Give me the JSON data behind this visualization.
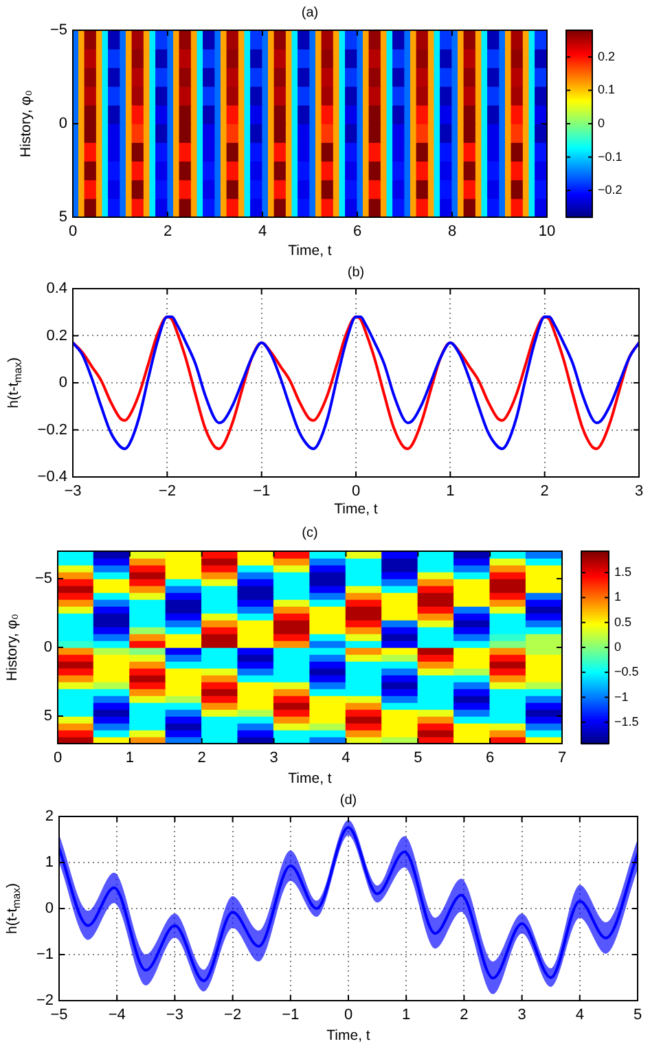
{
  "chart_data": [
    {
      "type": "heatmap",
      "title": "(a)",
      "xlabel": "Time, t",
      "ylabel": "History, φ₀",
      "xlim": [
        0,
        10
      ],
      "xticks": [
        0,
        2,
        4,
        6,
        8,
        10
      ],
      "ylim": [
        5,
        -5
      ],
      "yticks": [
        -5,
        0,
        5
      ],
      "clim": [
        -0.28,
        0.28
      ],
      "cticks": [
        -0.2,
        -0.1,
        0,
        0.1,
        0.2
      ],
      "cells": [
        [
          -0.15,
          0.12,
          0.27,
          0.27,
          0.12,
          -0.08,
          -0.25,
          -0.25,
          -0.15,
          0.12,
          0.26,
          0.26,
          0.12,
          -0.08,
          -0.18,
          -0.18,
          -0.15,
          0.12,
          0.27,
          0.27,
          0.12,
          -0.08,
          -0.25,
          -0.25,
          -0.15,
          0.12,
          0.26,
          0.26,
          0.12,
          -0.08,
          -0.18,
          -0.18,
          -0.15,
          0.12,
          0.27,
          0.27,
          0.12,
          -0.08,
          -0.25,
          -0.25,
          -0.15,
          0.12,
          0.26,
          0.26,
          0.12,
          -0.08,
          -0.18,
          -0.18,
          -0.15,
          0.12,
          0.27,
          0.27,
          0.12,
          -0.08,
          -0.25,
          -0.25,
          -0.15,
          0.12,
          0.26,
          0.26,
          0.12,
          -0.08,
          -0.18,
          -0.18,
          -0.15,
          0.12,
          0.27,
          0.27,
          0.12,
          -0.08,
          -0.25,
          -0.25,
          -0.15,
          0.12,
          0.26,
          0.26,
          0.12,
          -0.08,
          -0.18,
          -0.18
        ],
        [
          -0.15,
          0.12,
          0.25,
          0.25,
          0.12,
          -0.08,
          -0.18,
          -0.18,
          -0.15,
          0.12,
          0.27,
          0.27,
          0.12,
          -0.08,
          -0.25,
          -0.25,
          -0.15,
          0.12,
          0.25,
          0.25,
          0.12,
          -0.08,
          -0.18,
          -0.18,
          -0.15,
          0.12,
          0.27,
          0.27,
          0.12,
          -0.08,
          -0.25,
          -0.25,
          -0.15,
          0.12,
          0.25,
          0.25,
          0.12,
          -0.08,
          -0.18,
          -0.18,
          -0.15,
          0.12,
          0.27,
          0.27,
          0.12,
          -0.08,
          -0.25,
          -0.25,
          -0.15,
          0.12,
          0.25,
          0.25,
          0.12,
          -0.08,
          -0.18,
          -0.18,
          -0.15,
          0.12,
          0.27,
          0.27,
          0.12,
          -0.08,
          -0.25,
          -0.25,
          -0.15,
          0.12,
          0.25,
          0.25,
          0.12,
          -0.08,
          -0.18,
          -0.18,
          -0.15,
          0.12,
          0.27,
          0.27,
          0.12,
          -0.08,
          -0.25,
          -0.25
        ],
        [
          -0.15,
          0.12,
          0.27,
          0.27,
          0.12,
          -0.08,
          -0.25,
          -0.25,
          -0.15,
          0.12,
          0.25,
          0.25,
          0.12,
          -0.08,
          -0.18,
          -0.18,
          -0.15,
          0.12,
          0.27,
          0.27,
          0.12,
          -0.08,
          -0.25,
          -0.25,
          -0.15,
          0.12,
          0.25,
          0.25,
          0.12,
          -0.08,
          -0.18,
          -0.18,
          -0.15,
          0.12,
          0.27,
          0.27,
          0.12,
          -0.08,
          -0.25,
          -0.25,
          -0.15,
          0.12,
          0.25,
          0.25,
          0.12,
          -0.08,
          -0.18,
          -0.18,
          -0.15,
          0.12,
          0.27,
          0.27,
          0.12,
          -0.08,
          -0.25,
          -0.25,
          -0.15,
          0.12,
          0.25,
          0.25,
          0.12,
          -0.08,
          -0.18,
          -0.18,
          -0.15,
          0.12,
          0.27,
          0.27,
          0.12,
          -0.08,
          -0.25,
          -0.25,
          -0.15,
          0.12,
          0.25,
          0.25,
          0.12,
          -0.08,
          -0.18,
          -0.18
        ],
        [
          -0.15,
          0.12,
          0.25,
          0.25,
          0.12,
          -0.08,
          -0.18,
          -0.18,
          -0.15,
          0.12,
          0.26,
          0.26,
          0.12,
          -0.08,
          -0.25,
          -0.25,
          -0.15,
          0.12,
          0.25,
          0.25,
          0.12,
          -0.08,
          -0.18,
          -0.18,
          -0.15,
          0.12,
          0.26,
          0.26,
          0.12,
          -0.08,
          -0.25,
          -0.25,
          -0.15,
          0.12,
          0.25,
          0.25,
          0.12,
          -0.08,
          -0.18,
          -0.18,
          -0.15,
          0.12,
          0.26,
          0.26,
          0.12,
          -0.08,
          -0.25,
          -0.25,
          -0.15,
          0.12,
          0.25,
          0.25,
          0.12,
          -0.08,
          -0.18,
          -0.18,
          -0.15,
          0.12,
          0.26,
          0.26,
          0.12,
          -0.08,
          -0.25,
          -0.25,
          -0.15,
          0.12,
          0.25,
          0.25,
          0.12,
          -0.08,
          -0.18,
          -0.18,
          -0.15,
          0.12,
          0.26,
          0.26,
          0.12,
          -0.08,
          -0.25,
          -0.25
        ],
        [
          -0.15,
          0.12,
          0.28,
          0.28,
          0.12,
          -0.08,
          -0.25,
          -0.25,
          -0.15,
          0.12,
          0.2,
          0.2,
          0.12,
          -0.08,
          -0.22,
          -0.22,
          -0.15,
          0.12,
          0.28,
          0.28,
          0.12,
          -0.08,
          -0.25,
          -0.25,
          -0.15,
          0.12,
          0.2,
          0.2,
          0.12,
          -0.08,
          -0.22,
          -0.22,
          -0.15,
          0.12,
          0.28,
          0.28,
          0.12,
          -0.08,
          -0.25,
          -0.25,
          -0.15,
          0.12,
          0.2,
          0.2,
          0.12,
          -0.08,
          -0.22,
          -0.22,
          -0.15,
          0.12,
          0.28,
          0.28,
          0.12,
          -0.08,
          -0.25,
          -0.25,
          -0.15,
          0.12,
          0.2,
          0.2,
          0.12,
          -0.08,
          -0.22,
          -0.22,
          -0.15,
          0.12,
          0.28,
          0.28,
          0.12,
          -0.08,
          -0.25,
          -0.25,
          -0.15,
          0.12,
          0.2,
          0.2,
          0.12,
          -0.08,
          -0.22,
          -0.22
        ],
        [
          -0.15,
          0.12,
          0.28,
          0.28,
          0.12,
          -0.08,
          -0.22,
          -0.22,
          -0.15,
          0.12,
          0.18,
          0.18,
          0.12,
          -0.08,
          -0.25,
          -0.25,
          -0.15,
          0.12,
          0.28,
          0.28,
          0.12,
          -0.08,
          -0.22,
          -0.22,
          -0.15,
          0.12,
          0.18,
          0.18,
          0.12,
          -0.08,
          -0.25,
          -0.25,
          -0.15,
          0.12,
          0.28,
          0.28,
          0.12,
          -0.08,
          -0.22,
          -0.22,
          -0.15,
          0.12,
          0.18,
          0.18,
          0.12,
          -0.08,
          -0.25,
          -0.25,
          -0.15,
          0.12,
          0.28,
          0.28,
          0.12,
          -0.08,
          -0.22,
          -0.22,
          -0.15,
          0.12,
          0.18,
          0.18,
          0.12,
          -0.08,
          -0.25,
          -0.25,
          -0.15,
          0.12,
          0.28,
          0.28,
          0.12,
          -0.08,
          -0.22,
          -0.22,
          -0.15,
          0.12,
          0.18,
          0.18,
          0.12,
          -0.08,
          -0.25,
          -0.25
        ],
        [
          -0.15,
          0.12,
          0.2,
          0.2,
          0.12,
          -0.08,
          -0.22,
          -0.22,
          -0.15,
          0.12,
          0.28,
          0.28,
          0.12,
          -0.08,
          -0.2,
          -0.2,
          -0.15,
          0.12,
          0.2,
          0.2,
          0.12,
          -0.08,
          -0.22,
          -0.22,
          -0.15,
          0.12,
          0.28,
          0.28,
          0.12,
          -0.08,
          -0.2,
          -0.2,
          -0.15,
          0.12,
          0.2,
          0.2,
          0.12,
          -0.08,
          -0.22,
          -0.22,
          -0.15,
          0.12,
          0.28,
          0.28,
          0.12,
          -0.08,
          -0.2,
          -0.2,
          -0.15,
          0.12,
          0.2,
          0.2,
          0.12,
          -0.08,
          -0.22,
          -0.22,
          -0.15,
          0.12,
          0.28,
          0.28,
          0.12,
          -0.08,
          -0.2,
          -0.2,
          -0.15,
          0.12,
          0.2,
          0.2,
          0.12,
          -0.08,
          -0.22,
          -0.22,
          -0.15,
          0.12,
          0.28,
          0.28,
          0.12,
          -0.08,
          -0.2,
          -0.2
        ],
        [
          -0.15,
          0.12,
          0.28,
          0.28,
          0.12,
          -0.08,
          -0.2,
          -0.2,
          -0.15,
          0.12,
          0.2,
          0.2,
          0.12,
          -0.08,
          -0.22,
          -0.22,
          -0.15,
          0.12,
          0.28,
          0.28,
          0.12,
          -0.08,
          -0.2,
          -0.2,
          -0.15,
          0.12,
          0.2,
          0.2,
          0.12,
          -0.08,
          -0.22,
          -0.22,
          -0.15,
          0.12,
          0.28,
          0.28,
          0.12,
          -0.08,
          -0.2,
          -0.2,
          -0.15,
          0.12,
          0.2,
          0.2,
          0.12,
          -0.08,
          -0.22,
          -0.22,
          -0.15,
          0.12,
          0.28,
          0.28,
          0.12,
          -0.08,
          -0.2,
          -0.2,
          -0.15,
          0.12,
          0.2,
          0.2,
          0.12,
          -0.08,
          -0.22,
          -0.22,
          -0.15,
          0.12,
          0.28,
          0.28,
          0.12,
          -0.08,
          -0.2,
          -0.2,
          -0.15,
          0.12,
          0.2,
          0.2,
          0.12,
          -0.08,
          -0.22,
          -0.22
        ],
        [
          -0.15,
          0.12,
          0.2,
          0.2,
          0.12,
          -0.08,
          -0.22,
          -0.22,
          -0.15,
          0.12,
          0.28,
          0.28,
          0.12,
          -0.08,
          -0.2,
          -0.2,
          -0.15,
          0.12,
          0.2,
          0.2,
          0.12,
          -0.08,
          -0.22,
          -0.22,
          -0.15,
          0.12,
          0.28,
          0.28,
          0.12,
          -0.08,
          -0.2,
          -0.2,
          -0.15,
          0.12,
          0.2,
          0.2,
          0.12,
          -0.08,
          -0.22,
          -0.22,
          -0.15,
          0.12,
          0.28,
          0.28,
          0.12,
          -0.08,
          -0.2,
          -0.2,
          -0.15,
          0.12,
          0.2,
          0.2,
          0.12,
          -0.08,
          -0.22,
          -0.22,
          -0.15,
          0.12,
          0.28,
          0.28,
          0.12,
          -0.08,
          -0.2,
          -0.2,
          -0.15,
          0.12,
          0.2,
          0.2,
          0.12,
          -0.08,
          -0.22,
          -0.22,
          -0.15,
          0.12,
          0.28,
          0.28,
          0.12,
          -0.08,
          -0.2,
          -0.2
        ],
        [
          -0.15,
          0.12,
          0.28,
          0.28,
          0.12,
          -0.08,
          -0.2,
          -0.2,
          -0.15,
          0.12,
          0.2,
          0.2,
          0.12,
          -0.08,
          -0.22,
          -0.22,
          -0.15,
          0.12,
          0.28,
          0.28,
          0.12,
          -0.08,
          -0.2,
          -0.2,
          -0.15,
          0.12,
          0.2,
          0.2,
          0.12,
          -0.08,
          -0.22,
          -0.22,
          -0.15,
          0.12,
          0.28,
          0.28,
          0.12,
          -0.08,
          -0.2,
          -0.2,
          -0.15,
          0.12,
          0.2,
          0.2,
          0.12,
          -0.08,
          -0.22,
          -0.22,
          -0.15,
          0.12,
          0.28,
          0.28,
          0.12,
          -0.08,
          -0.2,
          -0.2,
          -0.15,
          0.12,
          0.2,
          0.2,
          0.12,
          -0.08,
          -0.22,
          -0.22,
          -0.15,
          0.12,
          0.28,
          0.28,
          0.12,
          -0.08,
          -0.2,
          -0.2,
          -0.15,
          0.12,
          0.2,
          0.2,
          0.12,
          -0.08,
          -0.22,
          -0.22
        ]
      ]
    },
    {
      "type": "line",
      "title": "(b)",
      "xlabel": "Time, t",
      "ylabel": "h(t-t$_{max}$)",
      "xlim": [
        -3,
        3
      ],
      "xticks": [
        -3,
        -2,
        -1,
        0,
        1,
        2,
        3
      ],
      "ylim": [
        -0.4,
        0.4
      ],
      "yticks": [
        -0.4,
        -0.2,
        0,
        0.2,
        0.4
      ],
      "grid": true,
      "x": [
        -3,
        -2.9,
        -2.8,
        -2.7,
        -2.6,
        -2.5,
        -2.45,
        -2.4,
        -2.3,
        -2.2,
        -2.1,
        -2,
        -1.95,
        -1.9,
        -1.8,
        -1.7,
        -1.6,
        -1.5,
        -1.45,
        -1.4,
        -1.3,
        -1.2,
        -1.1,
        -1,
        -0.9,
        -0.8,
        -0.7,
        -0.6,
        -0.5,
        -0.45,
        -0.4,
        -0.3,
        -0.2,
        -0.1,
        0,
        0.05,
        0.1,
        0.2,
        0.3,
        0.4,
        0.5,
        0.55,
        0.6,
        0.7,
        0.8,
        0.9,
        1,
        1.1,
        1.2,
        1.3,
        1.4,
        1.5,
        1.55,
        1.6,
        1.7,
        1.8,
        1.9,
        2,
        2.05,
        2.1,
        2.2,
        2.3,
        2.4,
        2.5,
        2.55,
        2.6,
        2.7,
        2.8,
        2.9,
        3
      ],
      "series": [
        {
          "color": "#ff0000",
          "values": [
            0.17,
            0.13,
            0.07,
            0.01,
            -0.08,
            -0.15,
            -0.16,
            -0.14,
            -0.05,
            0.08,
            0.21,
            0.28,
            0.27,
            0.22,
            0.1,
            -0.05,
            -0.19,
            -0.27,
            -0.28,
            -0.26,
            -0.16,
            -0.02,
            0.11,
            0.17,
            0.13,
            0.07,
            0.01,
            -0.08,
            -0.15,
            -0.16,
            -0.14,
            -0.05,
            0.08,
            0.21,
            0.28,
            0.27,
            0.22,
            0.1,
            -0.05,
            -0.19,
            -0.27,
            -0.28,
            -0.26,
            -0.16,
            -0.02,
            0.11,
            0.17,
            0.13,
            0.07,
            0.01,
            -0.08,
            -0.15,
            -0.16,
            -0.14,
            -0.05,
            0.08,
            0.21,
            0.28,
            0.27,
            0.22,
            0.1,
            -0.05,
            -0.19,
            -0.27,
            -0.28,
            -0.26,
            -0.16,
            -0.02,
            0.11,
            0.17
          ]
        },
        {
          "color": "#0000ff",
          "values": [
            0.17,
            0.12,
            0.02,
            -0.1,
            -0.21,
            -0.27,
            -0.28,
            -0.26,
            -0.15,
            0.02,
            0.18,
            0.28,
            0.28,
            0.25,
            0.17,
            0.08,
            -0.05,
            -0.15,
            -0.17,
            -0.16,
            -0.09,
            0.01,
            0.11,
            0.17,
            0.12,
            0.02,
            -0.1,
            -0.21,
            -0.27,
            -0.28,
            -0.26,
            -0.15,
            0.02,
            0.18,
            0.28,
            0.28,
            0.25,
            0.17,
            0.08,
            -0.05,
            -0.15,
            -0.17,
            -0.16,
            -0.09,
            0.01,
            0.11,
            0.17,
            0.12,
            0.02,
            -0.1,
            -0.21,
            -0.27,
            -0.28,
            -0.26,
            -0.15,
            0.02,
            0.18,
            0.28,
            0.28,
            0.25,
            0.17,
            0.08,
            -0.05,
            -0.15,
            -0.17,
            -0.16,
            -0.09,
            0.01,
            0.11,
            0.17
          ]
        }
      ]
    },
    {
      "type": "heatmap",
      "title": "(c)",
      "xlabel": "Time, t",
      "ylabel": "History, φ₀",
      "xlim": [
        0,
        7
      ],
      "xticks": [
        0,
        1,
        2,
        3,
        4,
        5,
        6,
        7
      ],
      "ylim": [
        7,
        -7
      ],
      "yticks": [
        -5,
        0,
        5
      ],
      "clim": [
        -1.93,
        1.93
      ],
      "cticks": [
        -1.5,
        -1,
        -0.5,
        0,
        0.5,
        1,
        1.5
      ],
      "cells": [
        [
          -0.5,
          -1.75,
          0.4,
          0.5,
          1.4,
          0.5,
          1.4,
          -0.5,
          0.4,
          -1.45,
          -0.5,
          -1.75,
          -0.5,
          -1.0
        ],
        [
          -0.5,
          -1.45,
          0.9,
          0.5,
          1.75,
          0.5,
          0.9,
          -1.0,
          -0.5,
          -1.75,
          -0.5,
          -1.45,
          0.4,
          -0.5
        ],
        [
          0.4,
          -1.0,
          1.4,
          0.5,
          1.4,
          -0.5,
          0.4,
          -1.45,
          -0.5,
          -1.75,
          -0.5,
          -1.0,
          0.9,
          0.5
        ],
        [
          0.9,
          -0.5,
          1.75,
          0.5,
          0.9,
          -1.0,
          -0.5,
          -1.75,
          -0.5,
          -1.45,
          0.4,
          -0.5,
          1.4,
          0.5
        ],
        [
          1.4,
          0.5,
          1.4,
          -0.5,
          0.4,
          -1.45,
          -0.5,
          -1.75,
          -0.5,
          -1.0,
          0.9,
          0.5,
          1.75,
          0.5
        ],
        [
          1.75,
          0.5,
          0.9,
          -1.0,
          -0.5,
          -1.75,
          -0.5,
          -1.45,
          0.4,
          -0.5,
          1.4,
          0.5,
          1.75,
          0.5
        ],
        [
          1.4,
          -0.5,
          0.4,
          -1.45,
          -0.5,
          -1.75,
          -0.5,
          -1.0,
          0.9,
          0.5,
          1.75,
          0.5,
          1.4,
          -1.0
        ],
        [
          0.9,
          -1.0,
          -0.5,
          -1.75,
          -0.5,
          -1.45,
          0.4,
          -0.5,
          1.4,
          0.5,
          1.75,
          0.5,
          0.9,
          -1.45
        ],
        [
          0.4,
          -1.45,
          -0.5,
          -1.75,
          -0.5,
          -1.0,
          0.9,
          0.5,
          1.75,
          0.5,
          1.4,
          -1.0,
          0.4,
          -1.75
        ],
        [
          -0.5,
          -1.75,
          -0.5,
          -1.45,
          0.4,
          -0.5,
          1.4,
          0.5,
          1.75,
          0.5,
          0.9,
          -1.45,
          -0.5,
          -1.45
        ],
        [
          -0.5,
          -1.75,
          -0.5,
          -1.0,
          0.9,
          0.5,
          1.75,
          0.5,
          1.4,
          -1.0,
          0.4,
          -1.75,
          -0.5,
          -1.0
        ],
        [
          -0.5,
          -1.45,
          0.1,
          -0.5,
          1.4,
          0.5,
          1.75,
          0.5,
          0.9,
          -1.45,
          -0.5,
          -1.45,
          -0.5,
          -0.5
        ],
        [
          -0.5,
          -1.0,
          0.9,
          0.5,
          1.75,
          0.5,
          1.4,
          -0.5,
          0.4,
          -1.75,
          -0.5,
          -1.0,
          -0.3,
          0.2
        ],
        [
          -0.3,
          -0.5,
          1.4,
          0.5,
          1.75,
          0.5,
          0.9,
          -1.0,
          -0.5,
          -1.45,
          -0.5,
          -0.5,
          0.0,
          0.2
        ],
        [
          0.9,
          0.2,
          0.0,
          -1.45,
          -0.5,
          -1.45,
          -0.5,
          -0.5,
          0.9,
          0.5,
          1.75,
          0.5,
          0.9,
          0.2
        ],
        [
          1.4,
          0.5,
          0.4,
          -1.0,
          -0.5,
          -1.75,
          -0.5,
          -1.0,
          0.4,
          0.2,
          1.4,
          0.5,
          1.4,
          0.5
        ],
        [
          1.75,
          0.5,
          0.9,
          -0.5,
          -0.5,
          -1.45,
          -0.5,
          -1.45,
          -0.5,
          -0.5,
          0.9,
          0.5,
          1.75,
          0.5
        ],
        [
          1.4,
          0.5,
          1.4,
          0.5,
          0.4,
          -1.0,
          -0.5,
          -1.75,
          -0.5,
          -1.0,
          0.4,
          0.2,
          1.4,
          0.5
        ],
        [
          0.9,
          0.5,
          1.75,
          0.5,
          0.9,
          -0.5,
          -0.5,
          -1.45,
          -0.5,
          -1.45,
          -0.5,
          -0.5,
          0.9,
          0.5
        ],
        [
          0.4,
          0.2,
          1.4,
          0.5,
          1.4,
          0.5,
          0.4,
          -1.0,
          -0.5,
          -1.75,
          -0.5,
          -1.0,
          0.4,
          0.2
        ],
        [
          -0.5,
          -0.5,
          0.9,
          0.5,
          1.75,
          0.5,
          0.9,
          -0.5,
          -0.5,
          -1.45,
          -0.5,
          -1.45,
          -0.5,
          -0.5
        ],
        [
          -0.5,
          -1.0,
          0.4,
          0.2,
          1.4,
          0.5,
          1.4,
          0.5,
          0.4,
          -1.0,
          -0.5,
          -1.75,
          -0.5,
          -1.0
        ],
        [
          -0.5,
          -1.45,
          -0.5,
          -0.5,
          0.9,
          0.5,
          1.75,
          0.5,
          0.9,
          -0.5,
          -0.5,
          -1.45,
          -0.5,
          -1.45
        ],
        [
          -0.5,
          -1.75,
          -0.5,
          -1.0,
          0.4,
          0.2,
          1.4,
          0.5,
          1.4,
          0.5,
          0.4,
          -1.0,
          -0.5,
          -1.75
        ],
        [
          0.4,
          -1.45,
          -0.5,
          -1.45,
          -0.5,
          -0.5,
          0.9,
          0.5,
          1.75,
          0.5,
          0.9,
          -0.5,
          -0.5,
          -1.45
        ],
        [
          0.9,
          -1.0,
          -0.5,
          -1.75,
          -0.5,
          -1.0,
          0.4,
          0.2,
          1.4,
          0.5,
          1.4,
          0.5,
          0.4,
          -1.0
        ],
        [
          1.4,
          -0.5,
          0.4,
          -1.45,
          -0.5,
          -1.45,
          -0.5,
          -0.5,
          0.9,
          0.5,
          1.75,
          0.5,
          0.9,
          -0.5
        ],
        [
          1.75,
          0.5,
          0.9,
          -1.0,
          -0.5,
          -1.75,
          -0.5,
          -1.0,
          0.4,
          0.2,
          1.4,
          0.5,
          1.4,
          0.5
        ]
      ]
    },
    {
      "type": "line",
      "title": "(d)",
      "xlabel": "Time, t",
      "ylabel": "h(t-t$_{max}$)",
      "xlim": [
        -5,
        5
      ],
      "xticks": [
        -5,
        -4,
        -3,
        -2,
        -1,
        0,
        1,
        2,
        3,
        4,
        5
      ],
      "ylim": [
        -2,
        2
      ],
      "yticks": [
        -2,
        -1,
        0,
        1,
        2
      ],
      "grid": true,
      "x": [
        -5,
        -4.5,
        -4.05,
        -3.5,
        -3,
        -2.5,
        -2,
        -1.55,
        -1,
        -0.55,
        0,
        0.5,
        0.97,
        1.5,
        1.95,
        2.5,
        3,
        3.5,
        4,
        4.45,
        5
      ],
      "series": [
        {
          "color": "#0000ff",
          "values": [
            1.3,
            -0.37,
            0.45,
            -1.34,
            -0.37,
            -1.57,
            -0.08,
            -0.82,
            0.93,
            0.0,
            1.76,
            0.32,
            1.23,
            -0.54,
            0.29,
            -1.51,
            -0.33,
            -1.5,
            0.16,
            -0.64,
            1.18
          ],
          "lower": [
            1.0,
            -0.68,
            0.12,
            -1.67,
            -0.63,
            -1.8,
            -0.42,
            -1.15,
            0.6,
            -0.18,
            1.59,
            0.13,
            0.89,
            -0.87,
            -0.07,
            -1.86,
            -0.54,
            -1.7,
            -0.2,
            -0.98,
            0.85
          ],
          "upper": [
            1.6,
            -0.05,
            0.78,
            -1.0,
            -0.11,
            -1.33,
            0.27,
            -0.48,
            1.26,
            0.17,
            1.92,
            0.5,
            1.57,
            -0.2,
            0.65,
            -1.15,
            -0.11,
            -1.3,
            0.51,
            -0.3,
            1.5
          ]
        }
      ]
    }
  ]
}
